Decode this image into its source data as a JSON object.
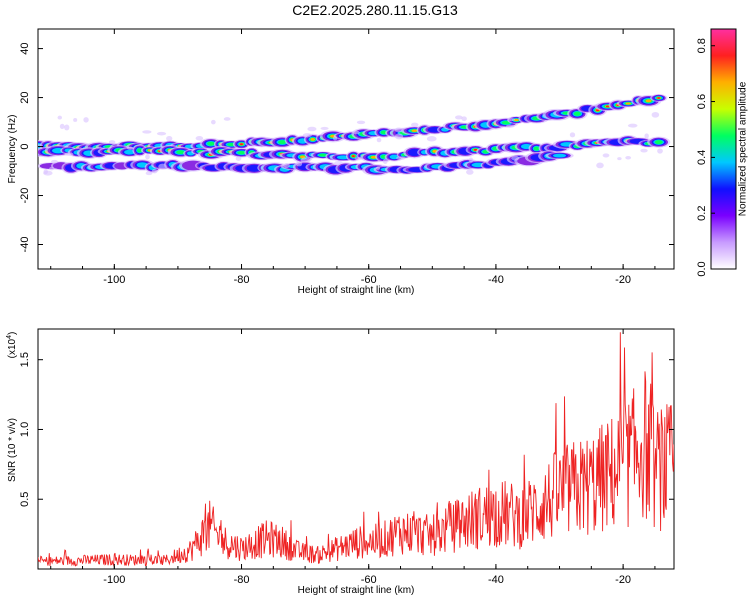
{
  "title": "C2E2.2025.280.11.15.G13",
  "chart_data": [
    {
      "type": "heatmap",
      "xlabel": "Height of straight line (km)",
      "ylabel": "Frequency (Hz)",
      "xlim": [
        -112,
        -12
      ],
      "ylim": [
        -50,
        48
      ],
      "x_ticks": [
        -100,
        -80,
        -60,
        -40,
        -20
      ],
      "x_tick_labels": [
        "-100",
        "-80",
        "-60",
        "-40",
        "-20"
      ],
      "y_ticks": [
        -40,
        -20,
        0,
        20,
        40
      ],
      "y_tick_labels": [
        "-40",
        "-20",
        "0",
        "20",
        "40"
      ],
      "colorbar": {
        "label": "Normalized spectral amplitude",
        "range": [
          0,
          0.86
        ],
        "ticks": [
          0.0,
          0.2,
          0.4,
          0.6,
          0.8
        ],
        "tick_labels": [
          "0.0",
          "0.2",
          "0.4",
          "0.6",
          "0.8"
        ],
        "colors": [
          "#ffffff",
          "#c89bff",
          "#7a00ff",
          "#1010ff",
          "#00c8ff",
          "#00ff60",
          "#c8ff00",
          "#ffb000",
          "#ff2020",
          "#ff2fa0"
        ]
      },
      "bands": [
        {
          "x": [
            -112,
            -95,
            -80,
            -65,
            -50,
            -35,
            -20,
            -14
          ],
          "y": [
            0,
            0,
            1,
            4,
            7,
            11,
            17,
            20
          ]
        },
        {
          "x": [
            -112,
            -95,
            -80,
            -60,
            -45,
            -30,
            -20,
            -14
          ],
          "y": [
            -2,
            -2,
            -3,
            -4,
            -2,
            0,
            2,
            2
          ]
        },
        {
          "x": [
            -110,
            -90,
            -70,
            -50,
            -40,
            -30
          ],
          "y": [
            -8,
            -8,
            -9,
            -9,
            -7,
            -4
          ]
        }
      ]
    },
    {
      "type": "line",
      "xlabel": "Height of straight line (km)",
      "ylabel": "SNR (10 * v/v)",
      "y_scale_label": "(x10",
      "y_scale_exp": "4",
      "xlim": [
        -112,
        -12
      ],
      "ylim": [
        0,
        1.72
      ],
      "x_ticks": [
        -100,
        -80,
        -60,
        -40,
        -20
      ],
      "x_tick_labels": [
        "-100",
        "-80",
        "-60",
        "-40",
        "-20"
      ],
      "y_ticks": [
        0.5,
        1.0,
        1.5
      ],
      "y_tick_labels": [
        "0.5",
        "1.0",
        "1.5"
      ],
      "color": "#ee2222",
      "envelope": {
        "x": [
          -112,
          -100,
          -92,
          -88,
          -85,
          -83,
          -80,
          -76,
          -74,
          -71,
          -68,
          -62,
          -58,
          -55,
          -50,
          -45,
          -40,
          -36,
          -30,
          -25,
          -22,
          -18,
          -17,
          -15,
          -12
        ],
        "y": [
          0.08,
          0.1,
          0.09,
          0.2,
          0.45,
          0.3,
          0.22,
          0.32,
          0.3,
          0.18,
          0.15,
          0.28,
          0.3,
          0.4,
          0.35,
          0.5,
          0.6,
          0.55,
          0.8,
          0.9,
          1.0,
          1.2,
          1.4,
          1.05,
          1.1
        ]
      }
    }
  ]
}
